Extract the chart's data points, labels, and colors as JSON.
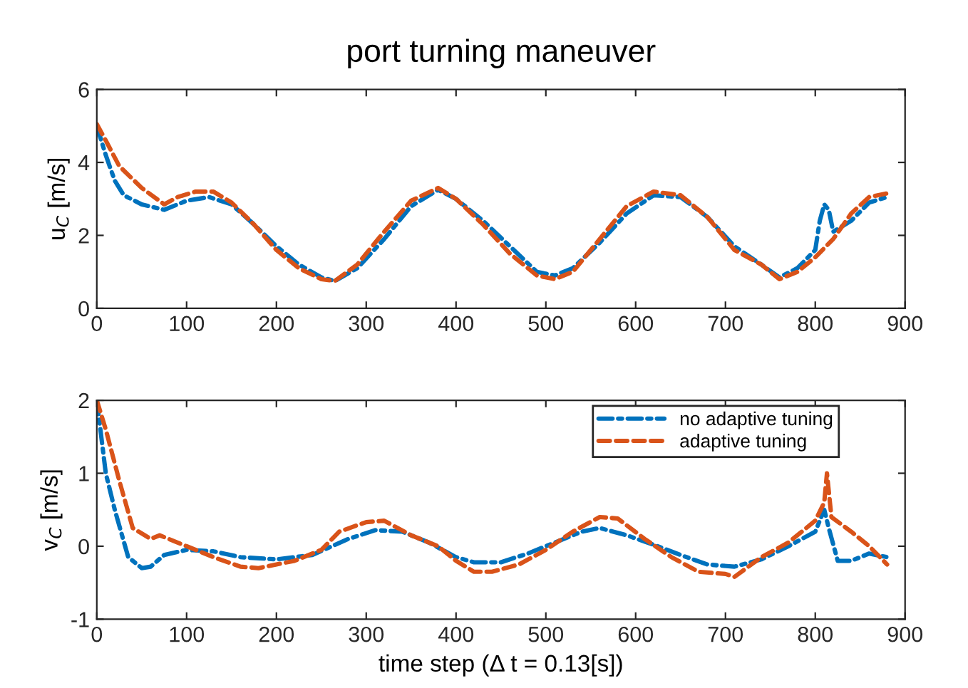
{
  "chart_data": [
    {
      "type": "line",
      "title": "port turning maneuver",
      "ylabel": "u$_{C}$ [m/s]",
      "xlim": [
        0,
        900
      ],
      "ylim": [
        0,
        6
      ],
      "xticks": [
        0,
        100,
        200,
        300,
        400,
        500,
        600,
        700,
        800,
        900
      ],
      "yticks": [
        0,
        2,
        4,
        6
      ],
      "grid": false,
      "legend": false,
      "series": [
        {
          "color": "#0072bd",
          "line_style": "dashdot",
          "x": [
            0,
            10,
            20,
            30,
            50,
            75,
            100,
            125,
            150,
            175,
            200,
            225,
            250,
            265,
            290,
            320,
            350,
            380,
            400,
            430,
            460,
            490,
            510,
            530,
            560,
            590,
            620,
            650,
            680,
            710,
            740,
            760,
            780,
            800,
            805,
            810,
            815,
            820,
            840,
            860,
            880
          ],
          "values": [
            5.0,
            4.2,
            3.5,
            3.1,
            2.85,
            2.7,
            2.95,
            3.05,
            2.85,
            2.3,
            1.7,
            1.2,
            0.85,
            0.75,
            1.1,
            1.9,
            2.8,
            3.25,
            3.0,
            2.4,
            1.7,
            1.0,
            0.9,
            1.1,
            1.8,
            2.6,
            3.1,
            3.05,
            2.5,
            1.7,
            1.2,
            0.85,
            1.1,
            1.6,
            2.4,
            2.85,
            2.7,
            2.1,
            2.4,
            2.9,
            3.05
          ]
        },
        {
          "color": "#d95319",
          "line_style": "dashed",
          "x": [
            0,
            10,
            25,
            50,
            75,
            90,
            110,
            130,
            150,
            175,
            200,
            225,
            250,
            265,
            290,
            320,
            350,
            380,
            400,
            430,
            460,
            490,
            510,
            530,
            560,
            590,
            620,
            650,
            680,
            710,
            740,
            760,
            780,
            800,
            820,
            840,
            860,
            880
          ],
          "values": [
            5.05,
            4.6,
            3.9,
            3.3,
            2.85,
            3.05,
            3.2,
            3.2,
            2.9,
            2.3,
            1.6,
            1.1,
            0.8,
            0.75,
            1.2,
            2.1,
            2.95,
            3.3,
            3.0,
            2.3,
            1.5,
            0.9,
            0.8,
            1.0,
            1.9,
            2.8,
            3.2,
            3.1,
            2.5,
            1.6,
            1.2,
            0.8,
            1.0,
            1.4,
            1.9,
            2.6,
            3.05,
            3.15
          ]
        }
      ]
    },
    {
      "type": "line",
      "xlabel": "time step (Δ t = 0.13[s])",
      "ylabel": "v$_{C}$ [m/s]",
      "xlim": [
        0,
        900
      ],
      "ylim": [
        -1,
        2
      ],
      "xticks": [
        0,
        100,
        200,
        300,
        400,
        500,
        600,
        700,
        800,
        900
      ],
      "yticks": [
        -1,
        0,
        1,
        2
      ],
      "grid": false,
      "legend": "top right",
      "series": [
        {
          "name": "no adaptive tuning",
          "color": "#0072bd",
          "line_style": "dashdot",
          "x": [
            0,
            10,
            20,
            35,
            50,
            60,
            75,
            100,
            130,
            160,
            200,
            240,
            280,
            310,
            340,
            370,
            400,
            420,
            450,
            480,
            510,
            540,
            560,
            590,
            620,
            650,
            680,
            710,
            740,
            770,
            800,
            810,
            815,
            825,
            840,
            860,
            880
          ],
          "values": [
            2.0,
            1.0,
            0.5,
            -0.15,
            -0.3,
            -0.28,
            -0.12,
            -0.05,
            -0.07,
            -0.15,
            -0.18,
            -0.12,
            0.1,
            0.22,
            0.2,
            0.05,
            -0.15,
            -0.22,
            -0.22,
            -0.1,
            0.05,
            0.2,
            0.25,
            0.15,
            0.02,
            -0.12,
            -0.25,
            -0.28,
            -0.18,
            0.0,
            0.2,
            0.5,
            0.25,
            -0.2,
            -0.2,
            -0.1,
            -0.15
          ]
        },
        {
          "name": "adaptive tuning",
          "color": "#d95319",
          "line_style": "dashed",
          "x": [
            0,
            10,
            25,
            40,
            60,
            70,
            100,
            130,
            160,
            180,
            220,
            250,
            270,
            300,
            320,
            350,
            380,
            400,
            420,
            440,
            470,
            500,
            530,
            560,
            580,
            610,
            640,
            670,
            700,
            710,
            740,
            770,
            800,
            810,
            813,
            818,
            840,
            860,
            880
          ],
          "values": [
            2.0,
            1.6,
            0.9,
            0.25,
            0.1,
            0.15,
            0.0,
            -0.15,
            -0.28,
            -0.3,
            -0.2,
            -0.05,
            0.2,
            0.33,
            0.35,
            0.15,
            0.0,
            -0.2,
            -0.35,
            -0.35,
            -0.25,
            -0.05,
            0.2,
            0.4,
            0.38,
            0.1,
            -0.15,
            -0.35,
            -0.38,
            -0.42,
            -0.15,
            0.05,
            0.35,
            0.6,
            1.0,
            0.4,
            0.2,
            0.0,
            -0.25
          ]
        }
      ]
    }
  ]
}
